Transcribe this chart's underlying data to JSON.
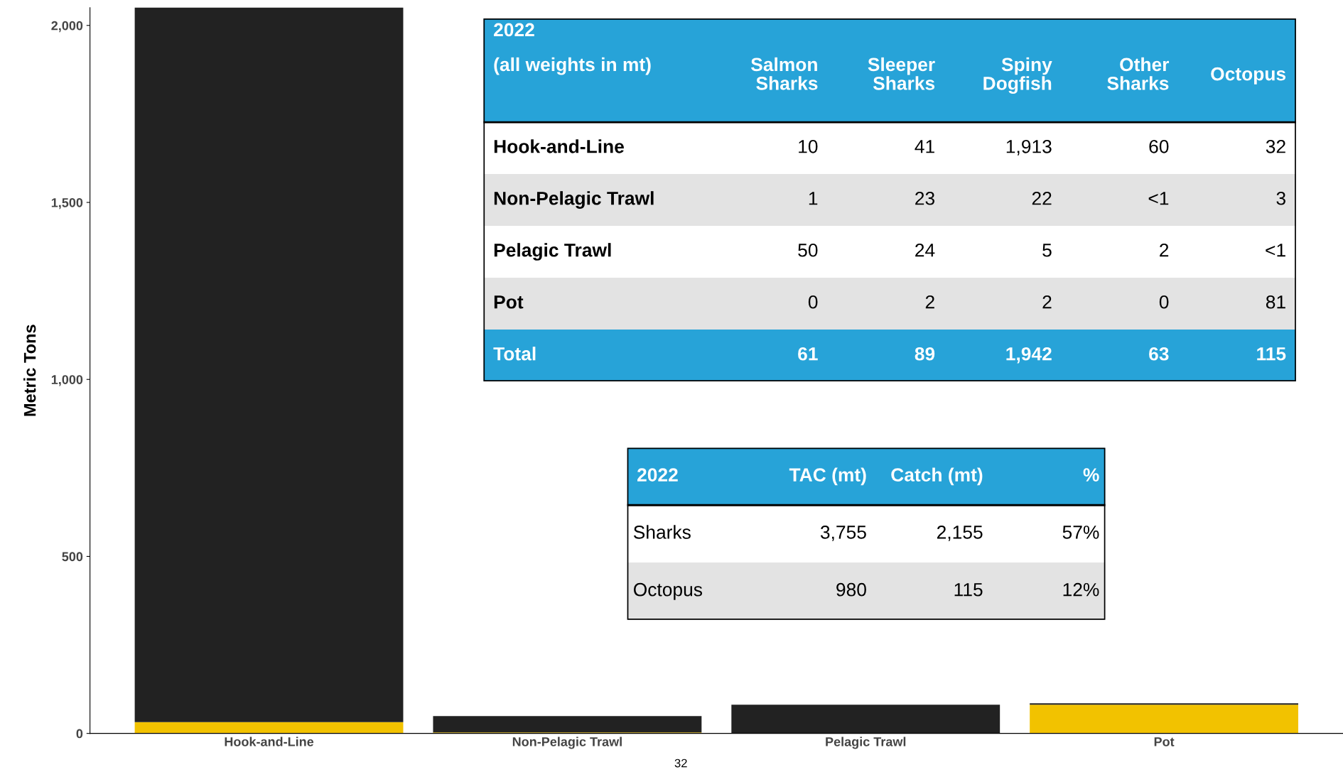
{
  "chart_data": [
    {
      "type": "bar",
      "stacked": true,
      "ylabel": "Metric Tons",
      "categories": [
        "Hook-and-Line",
        "Non-Pelagic Trawl",
        "Pelagic Trawl",
        "Pot"
      ],
      "series": [
        {
          "color": "#f2c200",
          "values": [
            32,
            3,
            null,
            81
          ]
        },
        {
          "color": "#222222",
          "values": [
            2024,
            46,
            81,
            4
          ]
        }
      ],
      "ylim": [
        0,
        2050
      ],
      "yticks": [
        0,
        500,
        {
          "value": 1000,
          "label": "1,000"
        },
        {
          "value": 1500,
          "label": "1,500"
        },
        {
          "value": 2000,
          "label": "2,000"
        }
      ],
      "grid": false,
      "legend": false,
      "annotations": [
        "32"
      ]
    },
    {
      "type": "other",
      "title": "2022",
      "subtitle": "(all weights in mt)",
      "categories": [
        "Salmon Sharks",
        "Sleeper Sharks",
        "Spiny Dogfish",
        "Other Sharks",
        "Octopus"
      ],
      "y_categories": [
        "Hook-and-Line",
        "Non-Pelagic Trawl",
        "Pelagic Trawl",
        "Pot",
        "Total"
      ],
      "cell_labels": [
        [
          "10",
          "41",
          "1,913",
          "60",
          "32"
        ],
        [
          "1",
          "23",
          "22",
          "<1",
          "3"
        ],
        [
          "50",
          "24",
          "5",
          "2",
          "<1"
        ],
        [
          "0",
          "2",
          "2",
          "0",
          "81"
        ]
      ],
      "totals": [
        "61",
        "89",
        "1,942",
        "63",
        "115"
      ]
    },
    {
      "type": "other",
      "title": "2022",
      "categories": [
        "TAC (mt)",
        "Catch (mt)",
        "%"
      ],
      "y_categories": [
        "Sharks",
        "Octopus"
      ],
      "cell_labels": [
        [
          "3,755",
          "2,155",
          "57%"
        ],
        [
          "980",
          "115",
          "12%"
        ]
      ]
    }
  ]
}
